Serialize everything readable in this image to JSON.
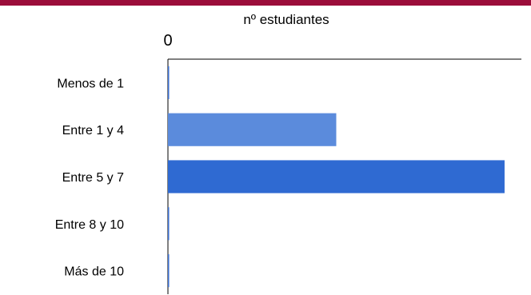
{
  "header": {
    "accent_color": "#9b0d3a"
  },
  "chart_data": {
    "type": "bar",
    "orientation": "horizontal",
    "title": "",
    "xlabel": "nº estudiantes",
    "ylabel": "",
    "categories": [
      "Menos de 1",
      "Entre 1 y 4",
      "Entre 5 y 7",
      "Entre 8 y 10",
      "Más de 10"
    ],
    "values": [
      0,
      1,
      2,
      0,
      0
    ],
    "xlim": [
      0,
      2.1
    ],
    "x_tick_labels": [
      "0"
    ],
    "bar_colors": [
      "#3b6fd0",
      "#5b8bdc",
      "#2f6ad2",
      "#3b6fd0",
      "#3b6fd0"
    ],
    "grid": false,
    "legend": "none"
  }
}
